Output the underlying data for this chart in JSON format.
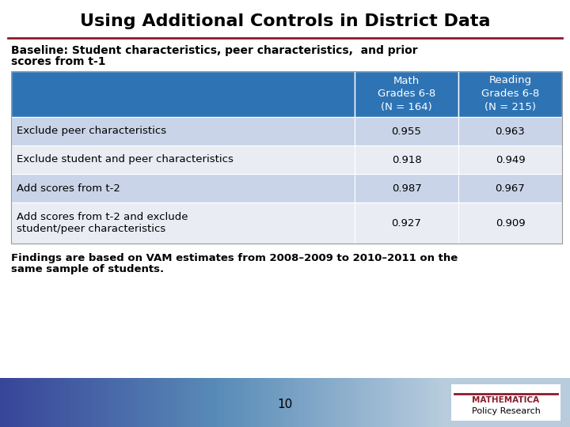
{
  "title": "Using Additional Controls in District Data",
  "subtitle_line1": "Baseline: Student characteristics, peer characteristics,  and prior",
  "subtitle_line2": "scores from t-1",
  "col_headers": [
    "Math\nGrades 6-8\n(N = 164)",
    "Reading\nGrades 6-8\n(N = 215)"
  ],
  "row_labels": [
    "Exclude peer characteristics",
    "Exclude student and peer characteristics",
    "Add scores from t-2",
    "Add scores from t-2 and exclude\nstudent/peer characteristics"
  ],
  "data": [
    [
      0.955,
      0.963
    ],
    [
      0.918,
      0.949
    ],
    [
      0.987,
      0.967
    ],
    [
      0.927,
      0.909
    ]
  ],
  "footnote_line1": "Findings are based on VAM estimates from 2008–2009 to 2010–2011 on the",
  "footnote_line2": "same sample of students.",
  "page_number": "10",
  "header_bg": "#2E74B5",
  "row_bg_odd": "#C9D4E8",
  "row_bg_even": "#EAECF4",
  "header_text_color": "#FFFFFF",
  "row_text_color": "#000000",
  "title_color": "#000000",
  "subtitle_color": "#000000",
  "footnote_color": "#000000",
  "title_separator_color": "#8B1A2A",
  "bg_color": "#FFFFFF",
  "table_border_color": "#999999"
}
